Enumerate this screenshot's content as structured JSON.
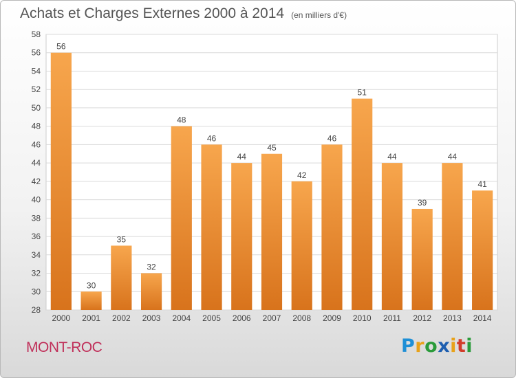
{
  "title": "Achats et Charges Externes 2000 à 2014",
  "subtitle": "(en milliers d'€)",
  "city": "MONT-ROC",
  "logo": {
    "text": "Proxiti",
    "letters": [
      {
        "ch": "P",
        "color": "#1e8fd6"
      },
      {
        "ch": "r",
        "color": "#e8a21a"
      },
      {
        "ch": "o",
        "color": "#2a9b3a"
      },
      {
        "ch": "x",
        "color": "#1e5fb0"
      },
      {
        "ch": "i",
        "color": "#e8a21a"
      },
      {
        "ch": "t",
        "color": "#d23c2a"
      },
      {
        "ch": "i",
        "color": "#2a9b3a"
      }
    ]
  },
  "colors": {
    "bar_top": "#f7a64d",
    "bar_bottom": "#d8731c",
    "grid": "#d9d9d9",
    "axis_text": "#444444"
  },
  "chart_data": {
    "type": "bar",
    "categories": [
      "2000",
      "2001",
      "2002",
      "2003",
      "2004",
      "2005",
      "2006",
      "2007",
      "2008",
      "2009",
      "2010",
      "2011",
      "2012",
      "2013",
      "2014"
    ],
    "values": [
      56,
      30,
      35,
      32,
      48,
      46,
      44,
      45,
      42,
      46,
      51,
      44,
      39,
      44,
      41
    ],
    "title": "Achats et Charges Externes 2000 à 2014",
    "subtitle": "(en milliers d'€)",
    "xlabel": "",
    "ylabel": "",
    "ylim": [
      28,
      58
    ],
    "yticks": [
      28,
      30,
      32,
      34,
      36,
      38,
      40,
      42,
      44,
      46,
      48,
      50,
      52,
      54,
      56,
      58
    ],
    "grid": true,
    "data_labels": true
  }
}
